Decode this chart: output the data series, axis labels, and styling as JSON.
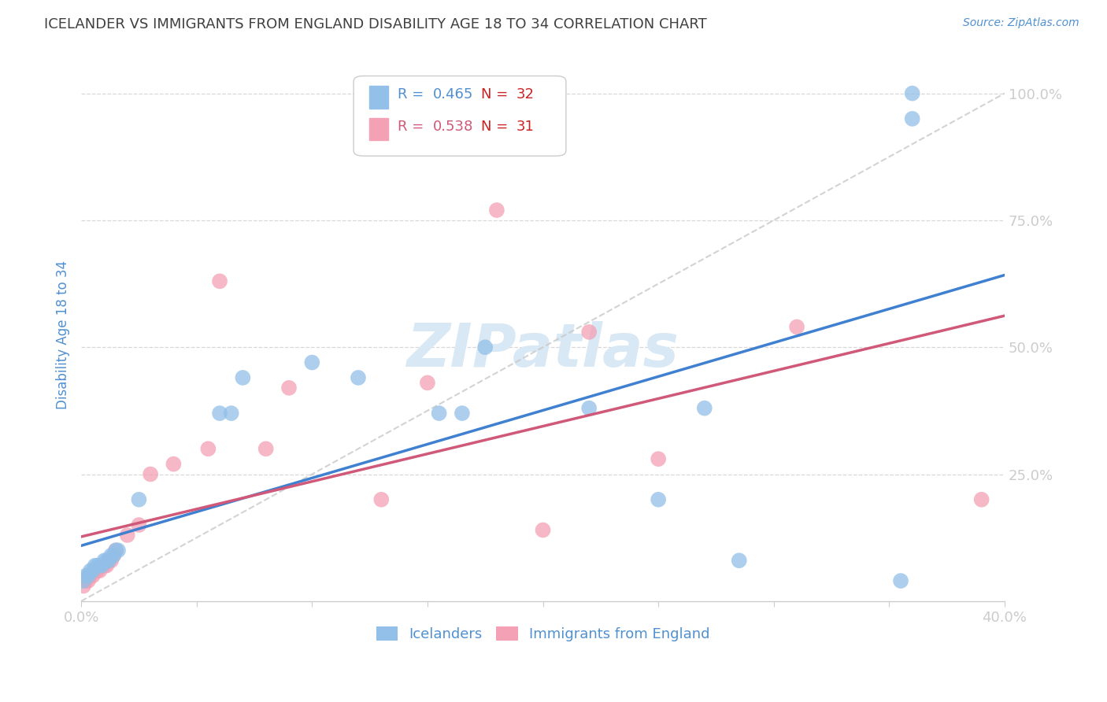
{
  "title": "ICELANDER VS IMMIGRANTS FROM ENGLAND DISABILITY AGE 18 TO 34 CORRELATION CHART",
  "source": "Source: ZipAtlas.com",
  "ylabel_label": "Disability Age 18 to 34",
  "xlim": [
    0.0,
    0.4
  ],
  "ylim": [
    0.0,
    1.05
  ],
  "xticks": [
    0.0,
    0.05,
    0.1,
    0.15,
    0.2,
    0.25,
    0.3,
    0.35,
    0.4
  ],
  "xticklabels": [
    "0.0%",
    "",
    "",
    "",
    "",
    "",
    "",
    "",
    "40.0%"
  ],
  "ytick_positions": [
    0.25,
    0.5,
    0.75,
    1.0
  ],
  "yticklabels": [
    "25.0%",
    "50.0%",
    "75.0%",
    "100.0%"
  ],
  "icelandic_R": 0.465,
  "icelandic_N": 32,
  "england_R": 0.538,
  "england_N": 31,
  "icelanders_color": "#92c0e8",
  "england_color": "#f4a0b5",
  "regression_iceland_color": "#4080d0",
  "regression_england_color": "#d05878",
  "diagonal_color": "#c8c8c8",
  "icelanders_x": [
    0.001,
    0.002,
    0.003,
    0.004,
    0.005,
    0.006,
    0.007,
    0.008,
    0.009,
    0.01,
    0.011,
    0.012,
    0.013,
    0.014,
    0.015,
    0.016,
    0.025,
    0.06,
    0.065,
    0.07,
    0.1,
    0.12,
    0.155,
    0.165,
    0.175,
    0.22,
    0.25,
    0.27,
    0.285,
    0.355,
    0.36,
    0.36
  ],
  "icelanders_y": [
    0.04,
    0.05,
    0.05,
    0.06,
    0.06,
    0.07,
    0.07,
    0.07,
    0.07,
    0.08,
    0.08,
    0.08,
    0.09,
    0.09,
    0.1,
    0.1,
    0.2,
    0.37,
    0.37,
    0.44,
    0.47,
    0.44,
    0.37,
    0.37,
    0.5,
    0.38,
    0.2,
    0.38,
    0.08,
    0.04,
    0.95,
    1.0
  ],
  "england_x": [
    0.001,
    0.002,
    0.003,
    0.004,
    0.005,
    0.006,
    0.007,
    0.008,
    0.009,
    0.01,
    0.011,
    0.012,
    0.013,
    0.014,
    0.015,
    0.02,
    0.025,
    0.03,
    0.04,
    0.055,
    0.06,
    0.08,
    0.09,
    0.13,
    0.15,
    0.18,
    0.2,
    0.22,
    0.25,
    0.31,
    0.39
  ],
  "england_y": [
    0.03,
    0.04,
    0.04,
    0.05,
    0.05,
    0.06,
    0.06,
    0.06,
    0.07,
    0.07,
    0.07,
    0.08,
    0.08,
    0.09,
    0.1,
    0.13,
    0.15,
    0.25,
    0.27,
    0.3,
    0.63,
    0.3,
    0.42,
    0.2,
    0.43,
    0.77,
    0.14,
    0.53,
    0.28,
    0.54,
    0.2
  ],
  "background_color": "#ffffff",
  "grid_color": "#d8d8d8",
  "title_color": "#404040",
  "axis_color": "#5090d0",
  "watermark_text": "ZIPatlas",
  "watermark_color": "#d8e8f4",
  "watermark_fontsize": 55,
  "legend_R_color_ice": "#5090d0",
  "legend_R_color_eng": "#d05878",
  "legend_N_color": "#cc2222"
}
